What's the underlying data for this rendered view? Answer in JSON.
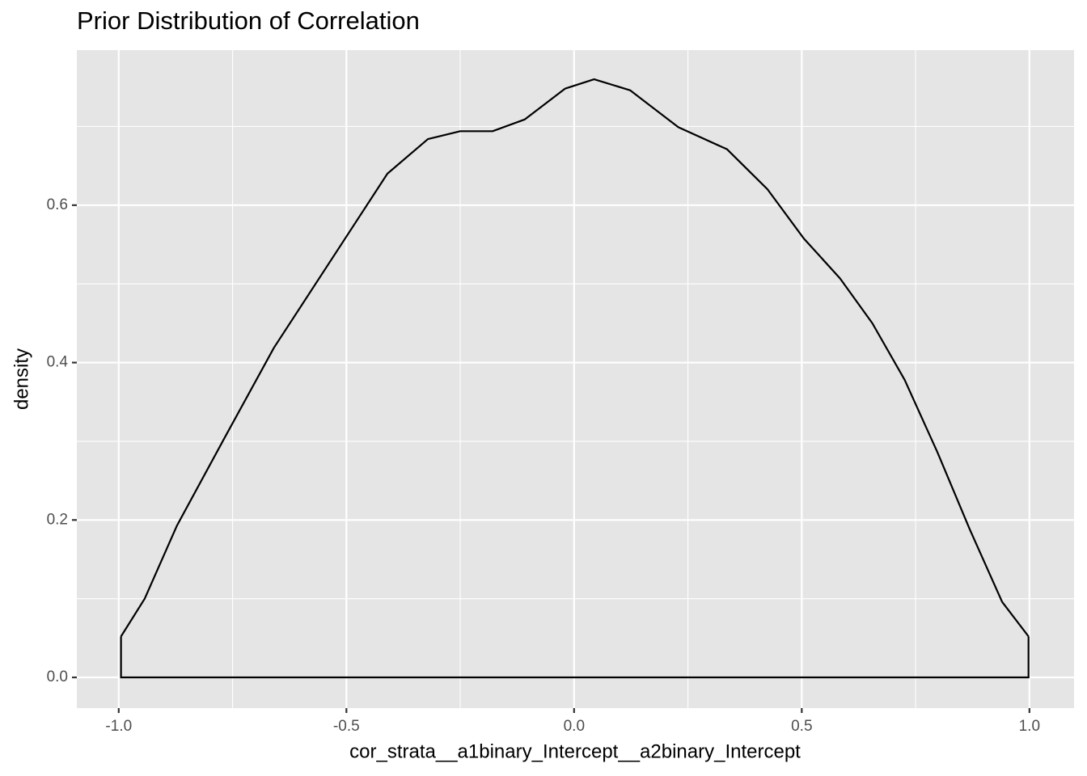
{
  "chart_data": {
    "type": "density",
    "title": "Prior Distribution of Correlation",
    "x_label": "cor_strata__a1binary_Intercept__a2binary_Intercept",
    "y_label": "density",
    "x": [
      -0.995,
      -0.943,
      -0.872,
      -0.766,
      -0.659,
      -0.508,
      -0.41,
      -0.321,
      -0.25,
      -0.179,
      -0.108,
      -0.02,
      0.044,
      0.123,
      0.229,
      0.336,
      0.425,
      0.504,
      0.584,
      0.655,
      0.726,
      0.798,
      0.869,
      0.94,
      0.998
    ],
    "values": [
      0.052,
      0.1,
      0.193,
      0.306,
      0.419,
      0.553,
      0.64,
      0.684,
      0.694,
      0.694,
      0.709,
      0.748,
      0.76,
      0.746,
      0.699,
      0.671,
      0.62,
      0.558,
      0.507,
      0.45,
      0.378,
      0.286,
      0.188,
      0.096,
      0.052
    ],
    "color": "#000000",
    "xlim": [
      -1.092,
      1.098
    ],
    "ylim": [
      -0.039,
      0.797
    ],
    "xticks": [
      {
        "value": -1,
        "label": "-1.0"
      },
      -0.5,
      {
        "value": 0,
        "label": "0.0"
      },
      0.5,
      {
        "value": 1,
        "label": "1.0"
      }
    ],
    "yticks": [
      {
        "value": 0,
        "label": "0.0"
      },
      0.2,
      0.4,
      0.6
    ],
    "grid": true
  }
}
